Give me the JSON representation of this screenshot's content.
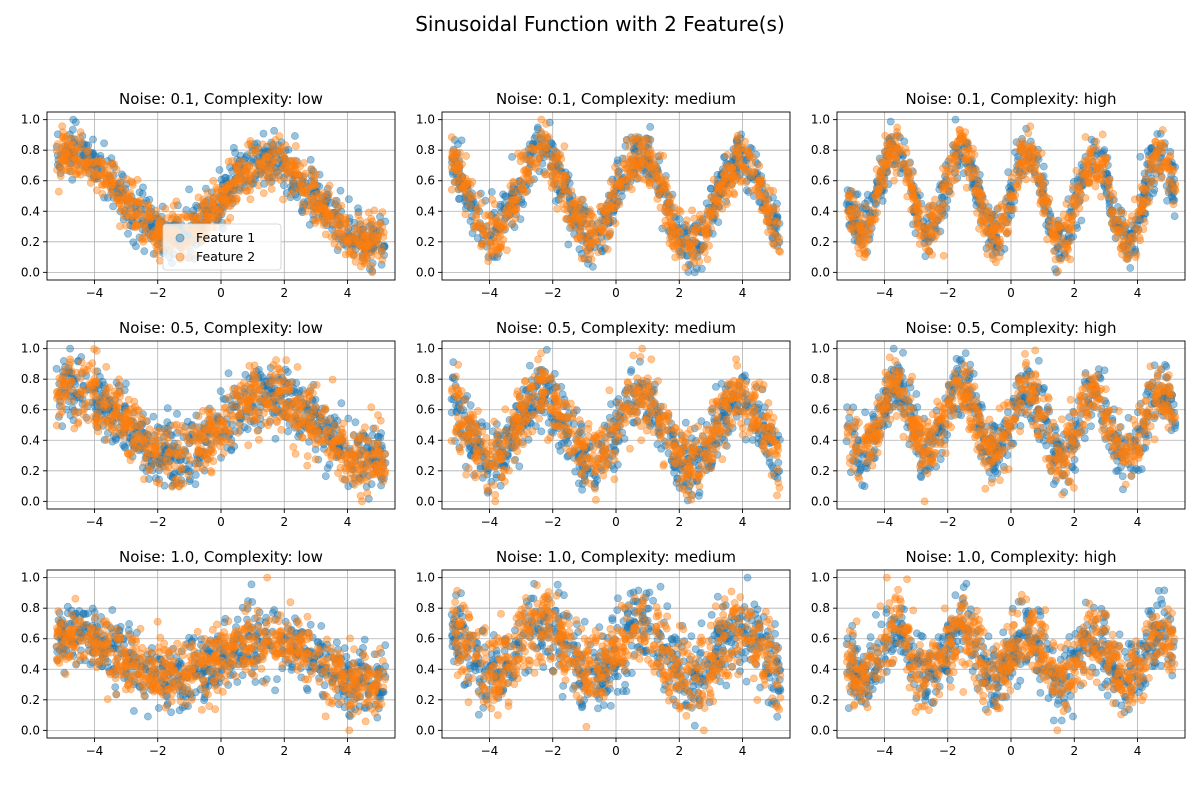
{
  "figure": {
    "title": "Sinusoidal Function with 2 Feature(s)"
  },
  "colors": {
    "feature1": "#1f77b4",
    "feature2": "#ff7f0e",
    "grid": "#b0b0b0",
    "axis": "#000000"
  },
  "chart_data": [
    {
      "type": "scatter",
      "title": "Noise: 0.1, Complexity: low",
      "noise": 0.1,
      "complexity": "low",
      "frequency": 1,
      "xlim": [
        -5.5,
        5.5
      ],
      "ylim": [
        -0.05,
        1.05
      ],
      "xticks": [
        -4,
        -2,
        0,
        2,
        4
      ],
      "xtick_labels": [
        "−4",
        "−2",
        "0",
        "2",
        "4"
      ],
      "yticks": [
        0.0,
        0.2,
        0.4,
        0.6,
        0.8,
        1.0
      ],
      "ytick_labels": [
        "0.0",
        "0.2",
        "0.4",
        "0.6",
        "0.8",
        "1.0"
      ],
      "grid": true,
      "legend": {
        "position": "lower-center",
        "entries": [
          "Feature 1",
          "Feature 2"
        ]
      },
      "series": [
        {
          "name": "Feature 1",
          "color": "#1f77b4"
        },
        {
          "name": "Feature 2",
          "color": "#ff7f0e"
        }
      ]
    },
    {
      "type": "scatter",
      "title": "Noise: 0.1, Complexity: medium",
      "noise": 0.1,
      "complexity": "medium",
      "frequency": 2,
      "xlim": [
        -5.5,
        5.5
      ],
      "ylim": [
        -0.05,
        1.05
      ],
      "xticks": [
        -4,
        -2,
        0,
        2,
        4
      ],
      "xtick_labels": [
        "−4",
        "−2",
        "0",
        "2",
        "4"
      ],
      "yticks": [
        0.0,
        0.2,
        0.4,
        0.6,
        0.8,
        1.0
      ],
      "ytick_labels": [
        "0.0",
        "0.2",
        "0.4",
        "0.6",
        "0.8",
        "1.0"
      ],
      "grid": true,
      "series": [
        {
          "name": "Feature 1",
          "color": "#1f77b4"
        },
        {
          "name": "Feature 2",
          "color": "#ff7f0e"
        }
      ]
    },
    {
      "type": "scatter",
      "title": "Noise: 0.1, Complexity: high",
      "noise": 0.1,
      "complexity": "high",
      "frequency": 3,
      "xlim": [
        -5.5,
        5.5
      ],
      "ylim": [
        -0.05,
        1.05
      ],
      "xticks": [
        -4,
        -2,
        0,
        2,
        4
      ],
      "xtick_labels": [
        "−4",
        "−2",
        "0",
        "2",
        "4"
      ],
      "yticks": [
        0.0,
        0.2,
        0.4,
        0.6,
        0.8,
        1.0
      ],
      "ytick_labels": [
        "0.0",
        "0.2",
        "0.4",
        "0.6",
        "0.8",
        "1.0"
      ],
      "grid": true,
      "series": [
        {
          "name": "Feature 1",
          "color": "#1f77b4"
        },
        {
          "name": "Feature 2",
          "color": "#ff7f0e"
        }
      ]
    },
    {
      "type": "scatter",
      "title": "Noise: 0.5, Complexity: low",
      "noise": 0.5,
      "complexity": "low",
      "frequency": 1,
      "xlim": [
        -5.5,
        5.5
      ],
      "ylim": [
        -0.05,
        1.05
      ],
      "xticks": [
        -4,
        -2,
        0,
        2,
        4
      ],
      "xtick_labels": [
        "−4",
        "−2",
        "0",
        "2",
        "4"
      ],
      "yticks": [
        0.0,
        0.2,
        0.4,
        0.6,
        0.8,
        1.0
      ],
      "ytick_labels": [
        "0.0",
        "0.2",
        "0.4",
        "0.6",
        "0.8",
        "1.0"
      ],
      "grid": true,
      "series": [
        {
          "name": "Feature 1",
          "color": "#1f77b4"
        },
        {
          "name": "Feature 2",
          "color": "#ff7f0e"
        }
      ]
    },
    {
      "type": "scatter",
      "title": "Noise: 0.5, Complexity: medium",
      "noise": 0.5,
      "complexity": "medium",
      "frequency": 2,
      "xlim": [
        -5.5,
        5.5
      ],
      "ylim": [
        -0.05,
        1.05
      ],
      "xticks": [
        -4,
        -2,
        0,
        2,
        4
      ],
      "xtick_labels": [
        "−4",
        "−2",
        "0",
        "2",
        "4"
      ],
      "yticks": [
        0.0,
        0.2,
        0.4,
        0.6,
        0.8,
        1.0
      ],
      "ytick_labels": [
        "0.0",
        "0.2",
        "0.4",
        "0.6",
        "0.8",
        "1.0"
      ],
      "grid": true,
      "series": [
        {
          "name": "Feature 1",
          "color": "#1f77b4"
        },
        {
          "name": "Feature 2",
          "color": "#ff7f0e"
        }
      ]
    },
    {
      "type": "scatter",
      "title": "Noise: 0.5, Complexity: high",
      "noise": 0.5,
      "complexity": "high",
      "frequency": 3,
      "xlim": [
        -5.5,
        5.5
      ],
      "ylim": [
        -0.05,
        1.05
      ],
      "xticks": [
        -4,
        -2,
        0,
        2,
        4
      ],
      "xtick_labels": [
        "−4",
        "−2",
        "0",
        "2",
        "4"
      ],
      "yticks": [
        0.0,
        0.2,
        0.4,
        0.6,
        0.8,
        1.0
      ],
      "ytick_labels": [
        "0.0",
        "0.2",
        "0.4",
        "0.6",
        "0.8",
        "1.0"
      ],
      "grid": true,
      "series": [
        {
          "name": "Feature 1",
          "color": "#1f77b4"
        },
        {
          "name": "Feature 2",
          "color": "#ff7f0e"
        }
      ]
    },
    {
      "type": "scatter",
      "title": "Noise: 1.0, Complexity: low",
      "noise": 1.0,
      "complexity": "low",
      "frequency": 1,
      "xlim": [
        -5.5,
        5.5
      ],
      "ylim": [
        -0.05,
        1.05
      ],
      "xticks": [
        -4,
        -2,
        0,
        2,
        4
      ],
      "xtick_labels": [
        "−4",
        "−2",
        "0",
        "2",
        "4"
      ],
      "yticks": [
        0.0,
        0.2,
        0.4,
        0.6,
        0.8,
        1.0
      ],
      "ytick_labels": [
        "0.0",
        "0.2",
        "0.4",
        "0.6",
        "0.8",
        "1.0"
      ],
      "grid": true,
      "series": [
        {
          "name": "Feature 1",
          "color": "#1f77b4"
        },
        {
          "name": "Feature 2",
          "color": "#ff7f0e"
        }
      ]
    },
    {
      "type": "scatter",
      "title": "Noise: 1.0, Complexity: medium",
      "noise": 1.0,
      "complexity": "medium",
      "frequency": 2,
      "xlim": [
        -5.5,
        5.5
      ],
      "ylim": [
        -0.05,
        1.05
      ],
      "xticks": [
        -4,
        -2,
        0,
        2,
        4
      ],
      "xtick_labels": [
        "−4",
        "−2",
        "0",
        "2",
        "4"
      ],
      "yticks": [
        0.0,
        0.2,
        0.4,
        0.6,
        0.8,
        1.0
      ],
      "ytick_labels": [
        "0.0",
        "0.2",
        "0.4",
        "0.6",
        "0.8",
        "1.0"
      ],
      "grid": true,
      "series": [
        {
          "name": "Feature 1",
          "color": "#1f77b4"
        },
        {
          "name": "Feature 2",
          "color": "#ff7f0e"
        }
      ]
    },
    {
      "type": "scatter",
      "title": "Noise: 1.0, Complexity: high",
      "noise": 1.0,
      "complexity": "high",
      "frequency": 3,
      "xlim": [
        -5.5,
        5.5
      ],
      "ylim": [
        -0.05,
        1.05
      ],
      "xticks": [
        -4,
        -2,
        0,
        2,
        4
      ],
      "xtick_labels": [
        "−4",
        "−2",
        "0",
        "2",
        "4"
      ],
      "yticks": [
        0.0,
        0.2,
        0.4,
        0.6,
        0.8,
        1.0
      ],
      "ytick_labels": [
        "0.0",
        "0.2",
        "0.4",
        "0.6",
        "0.8",
        "1.0"
      ],
      "grid": true,
      "series": [
        {
          "name": "Feature 1",
          "color": "#1f77b4"
        },
        {
          "name": "Feature 2",
          "color": "#ff7f0e"
        }
      ]
    }
  ]
}
